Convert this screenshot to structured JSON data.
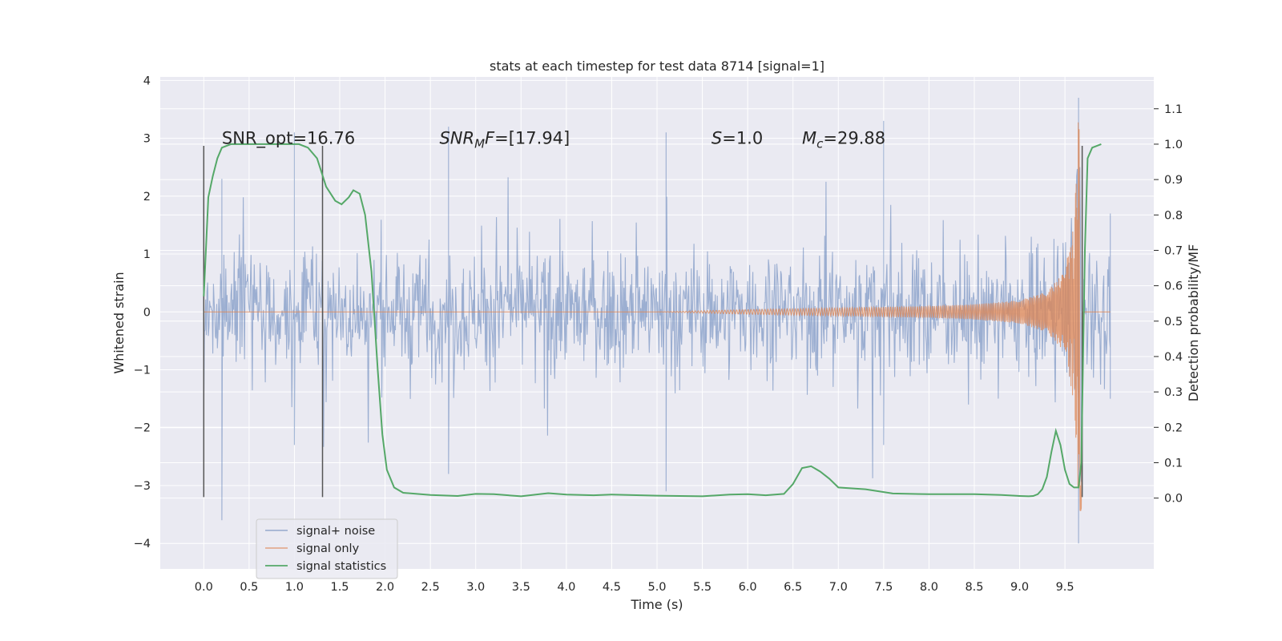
{
  "chart_data": {
    "type": "line",
    "title": "stats at each timestep for test data 8714 [signal=1]",
    "xlabel": "Time (s)",
    "ylabel": "Whitened strain",
    "y2label": "Detection probability/MF",
    "xlim": [
      -0.48,
      10.48
    ],
    "ylim": [
      -4.44,
      4.06
    ],
    "y2lim": [
      -0.2,
      1.19
    ],
    "x_ticks": [
      0.0,
      0.5,
      1.0,
      1.5,
      2.0,
      2.5,
      3.0,
      3.5,
      4.0,
      4.5,
      5.0,
      5.5,
      6.0,
      6.5,
      7.0,
      7.5,
      8.0,
      8.5,
      9.0,
      9.5
    ],
    "y_ticks": [
      4,
      3,
      2,
      1,
      0,
      -1,
      -2,
      -3,
      -4
    ],
    "y2_ticks": [
      1.1,
      1.0,
      0.9,
      0.8,
      0.7,
      0.6,
      0.5,
      0.4,
      0.3,
      0.2,
      0.1,
      0.0
    ],
    "grid": true,
    "legend_position": "bottom-left",
    "annotations": [
      {
        "text": "SNR_opt=16.76",
        "x": 0.2,
        "y": 3.0
      },
      {
        "text": "SNR_MF=[17.94]",
        "x": 2.6,
        "y": 3.0,
        "math": true,
        "base": "SNR",
        "sub": "M",
        "tail": "F=[17.94]"
      },
      {
        "text": "S=1.0",
        "x": 5.6,
        "y": 3.0,
        "math": true,
        "base": "S",
        "sub": "",
        "tail": "=1.0"
      },
      {
        "text": "M_c=29.88",
        "x": 6.6,
        "y": 3.0,
        "math": true,
        "base": "M",
        "sub": "c",
        "tail": "=29.88"
      }
    ],
    "vlines": [
      {
        "x": 0.0,
        "y": [
          -3.2,
          2.87
        ]
      },
      {
        "x": 1.31,
        "y": [
          -3.2,
          2.87
        ]
      },
      {
        "x": 9.69,
        "y": [
          -3.2,
          2.87
        ]
      }
    ],
    "series": [
      {
        "name": "signal+ noise",
        "color": "#4c72b0",
        "style": "dense noise trace, amplitude ~1.5 typical with spikes up to 3.3 and down to -4.0",
        "x_range": [
          0.0,
          10.0
        ],
        "envelope_samples": [
          {
            "x": 0.0,
            "max": 2.1,
            "min": -1.7
          },
          {
            "x": 0.2,
            "max": 2.3,
            "min": -3.6
          },
          {
            "x": 1.0,
            "max": 3.1,
            "min": -2.3
          },
          {
            "x": 2.7,
            "max": 3.2,
            "min": -2.8
          },
          {
            "x": 5.1,
            "max": 3.1,
            "min": -3.1
          },
          {
            "x": 7.5,
            "max": 3.3,
            "min": -2.3
          },
          {
            "x": 9.65,
            "max": 3.7,
            "min": -4.0
          },
          {
            "x": 10.0,
            "max": 1.7,
            "min": -1.5
          }
        ]
      },
      {
        "name": "signal only",
        "color": "#dd8452",
        "style": "chirp: flat near 0 until ~5 s, oscillation growing toward merger at ~9.65 s",
        "x": [
          0.0,
          5.0,
          6.0,
          7.0,
          8.0,
          8.5,
          9.0,
          9.3,
          9.5,
          9.6,
          9.65,
          9.68,
          9.7,
          10.0
        ],
        "amplitude": [
          0.0,
          0.0,
          0.04,
          0.07,
          0.1,
          0.13,
          0.2,
          0.35,
          0.7,
          1.6,
          3.6,
          3.4,
          0.0,
          0.0
        ]
      },
      {
        "name": "signal statistics",
        "color": "#55a868",
        "axis": "right",
        "x": [
          0.0,
          0.05,
          0.1,
          0.15,
          0.2,
          0.3,
          0.5,
          0.7,
          0.9,
          1.05,
          1.15,
          1.25,
          1.3,
          1.35,
          1.45,
          1.52,
          1.6,
          1.65,
          1.72,
          1.78,
          1.85,
          1.92,
          1.97,
          2.02,
          2.1,
          2.2,
          2.5,
          2.8,
          3.0,
          3.2,
          3.5,
          3.8,
          4.0,
          4.3,
          4.5,
          5.0,
          5.5,
          5.8,
          6.0,
          6.2,
          6.4,
          6.5,
          6.6,
          6.7,
          6.8,
          6.9,
          7.0,
          7.3,
          7.6,
          8.0,
          8.5,
          8.8,
          9.0,
          9.1,
          9.15,
          9.2,
          9.25,
          9.3,
          9.35,
          9.4,
          9.45,
          9.5,
          9.55,
          9.6,
          9.65,
          9.68,
          9.72,
          9.75,
          9.8,
          9.9
        ],
        "values": [
          0.57,
          0.85,
          0.91,
          0.96,
          0.99,
          1.0,
          1.0,
          1.0,
          1.0,
          1.0,
          0.99,
          0.96,
          0.92,
          0.88,
          0.84,
          0.83,
          0.85,
          0.87,
          0.86,
          0.8,
          0.64,
          0.36,
          0.18,
          0.08,
          0.03,
          0.015,
          0.009,
          0.006,
          0.012,
          0.011,
          0.005,
          0.014,
          0.01,
          0.008,
          0.01,
          0.007,
          0.005,
          0.01,
          0.011,
          0.008,
          0.012,
          0.04,
          0.085,
          0.09,
          0.075,
          0.055,
          0.03,
          0.025,
          0.013,
          0.011,
          0.011,
          0.009,
          0.006,
          0.005,
          0.006,
          0.011,
          0.025,
          0.06,
          0.13,
          0.19,
          0.15,
          0.08,
          0.04,
          0.03,
          0.03,
          0.1,
          0.7,
          0.96,
          0.99,
          1.0
        ]
      }
    ]
  }
}
